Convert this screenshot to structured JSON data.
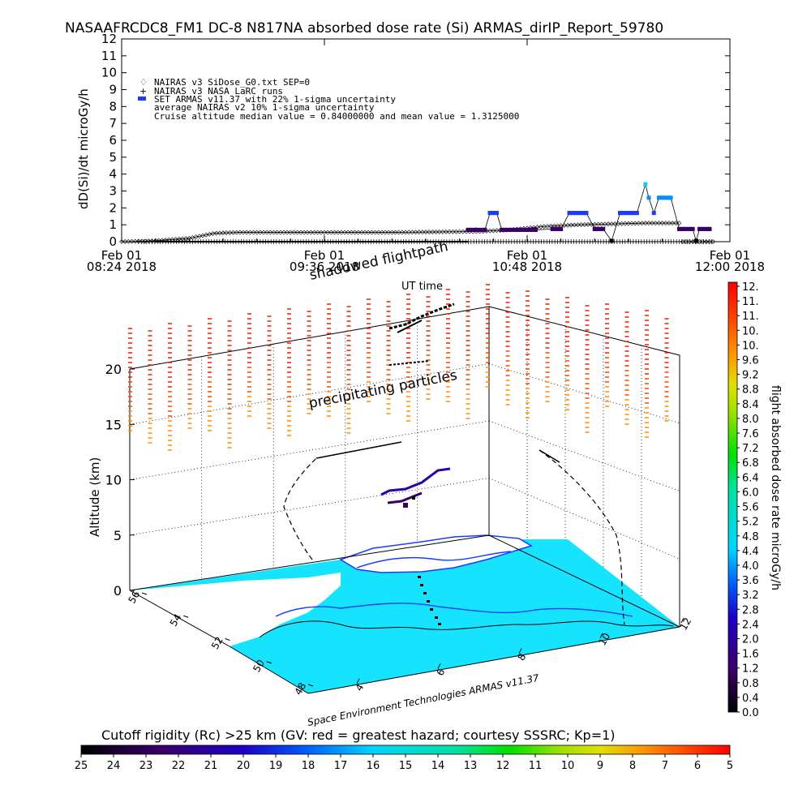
{
  "header": {
    "title": "NASAAFRCDC8_FM1 DC-8   N817NA absorbed dose rate (Si) ARMAS_dirIP_Report_59780"
  },
  "chart_data": [
    {
      "type": "line",
      "ylabel": "dD(Si)/dt microGy/h",
      "ylim": [
        0,
        12
      ],
      "y_ticks": [
        "0",
        "1",
        "2",
        "3",
        "4",
        "5",
        "6",
        "7",
        "8",
        "9",
        "10",
        "11",
        "12"
      ],
      "x_ticks": [
        {
          "date": "Feb 01",
          "time": "08:24 2018"
        },
        {
          "date": "Feb 01",
          "time": "09:36 2018"
        },
        {
          "date": "Feb 01",
          "time": "10:48 2018"
        },
        {
          "date": "Feb 01",
          "time": "12:00 2018"
        }
      ],
      "xlabel": "UT time",
      "legend": [
        "NAIRAS v3 SiDose_G0.txt SEP=0",
        "NAIRAS v3 NASA LaRC runs",
        "SET ARMAS v11.37 with 22% 1-sigma uncertainty",
        "average NAIRAS v2 10% 1-sigma uncertainty",
        "Cruise altitude median value = 0.84000000 and mean value = 1.3125000"
      ],
      "series": [
        {
          "name": "NAIRAS v3 SiDose_G0.txt SEP=0",
          "x_hours": [
            8.4,
            8.6,
            8.8,
            8.95,
            9.1,
            9.5,
            10.0,
            10.5,
            10.7,
            10.9,
            11.1,
            11.3,
            11.5,
            11.7
          ],
          "values": [
            0.0,
            0.05,
            0.2,
            0.5,
            0.55,
            0.55,
            0.55,
            0.6,
            0.7,
            0.9,
            1.0,
            1.05,
            1.1,
            1.1
          ]
        },
        {
          "name": "SET ARMAS v11.37 with 22% 1-sigma uncertainty",
          "points": [
            [
              10.45,
              0.7
            ],
            [
              10.5,
              0.7
            ],
            [
              10.55,
              0.7
            ],
            [
              10.58,
              1.7
            ],
            [
              10.62,
              1.7
            ],
            [
              10.65,
              0.7
            ],
            [
              10.75,
              0.7
            ],
            [
              10.85,
              0.7
            ],
            [
              10.95,
              0.75
            ],
            [
              11.0,
              0.75
            ],
            [
              11.05,
              1.7
            ],
            [
              11.15,
              1.7
            ],
            [
              11.2,
              0.75
            ],
            [
              11.25,
              0.75
            ],
            [
              11.3,
              0.05
            ],
            [
              11.35,
              1.7
            ],
            [
              11.45,
              1.7
            ],
            [
              11.5,
              3.4
            ],
            [
              11.52,
              2.6
            ],
            [
              11.55,
              1.7
            ],
            [
              11.58,
              2.6
            ],
            [
              11.65,
              2.6
            ],
            [
              11.7,
              0.75
            ],
            [
              11.78,
              0.75
            ],
            [
              11.8,
              0.05
            ],
            [
              11.82,
              0.75
            ],
            [
              11.88,
              0.75
            ]
          ]
        }
      ]
    },
    {
      "type": "3d-surface-map",
      "xlabel": "Longitude",
      "ylabel": "Latitude",
      "zlabel": "Altitude (km)",
      "zlim": [
        0,
        20
      ],
      "z_ticks": [
        "0",
        "5",
        "10",
        "15",
        "20"
      ],
      "x_ticks": [
        "4",
        "6",
        "8",
        "10",
        "12"
      ],
      "y_ticks": [
        "48",
        "50",
        "52",
        "54",
        "56"
      ],
      "annotations": [
        "shadowed flightpath",
        "precipitating particles",
        "Space Environment Technologies ARMAS v11.37"
      ],
      "colorbar": {
        "label": "flight absorbed dose rate microGy/h",
        "ticks": [
          "0.0",
          "0.4",
          "0.8",
          "1.2",
          "1.6",
          "2.0",
          "2.4",
          "2.8",
          "3.2",
          "3.6",
          "4.0",
          "4.4",
          "4.8",
          "5.2",
          "5.6",
          "6.0",
          "6.4",
          "6.8",
          "7.2",
          "7.6",
          "8.0",
          "8.4",
          "8.8",
          "9.2",
          "9.6",
          "10.",
          "10.",
          "11.",
          "11.",
          "12."
        ]
      },
      "rc_colorbar": {
        "title": "Cutoff rigidity (Rc) >25 km (GV: red = greatest hazard; courtesy SSSRC; Kp=1)",
        "ticks": [
          "25",
          "24",
          "23",
          "22",
          "21",
          "20",
          "19",
          "18",
          "17",
          "16",
          "15",
          "14",
          "13",
          "12",
          "11",
          "10",
          "9",
          "8",
          "7",
          "6",
          "5"
        ]
      }
    }
  ]
}
